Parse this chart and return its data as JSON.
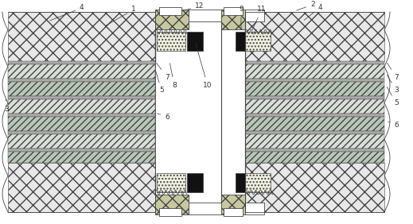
{
  "fig_width": 5.19,
  "fig_height": 2.82,
  "lc": "#444444",
  "lc2": "#888888",
  "fc_diamond": "#e0e0e0",
  "fc_diag_light": "#d8d8d8",
  "fc_diag_dark": "#c0c0c0",
  "fc_gray_band": "#a0a0a0",
  "fc_white": "#ffffff",
  "fc_black": "#111111",
  "fc_dotted": "#f0f0e0",
  "fc_hatch_connector": "#c8c8a0"
}
